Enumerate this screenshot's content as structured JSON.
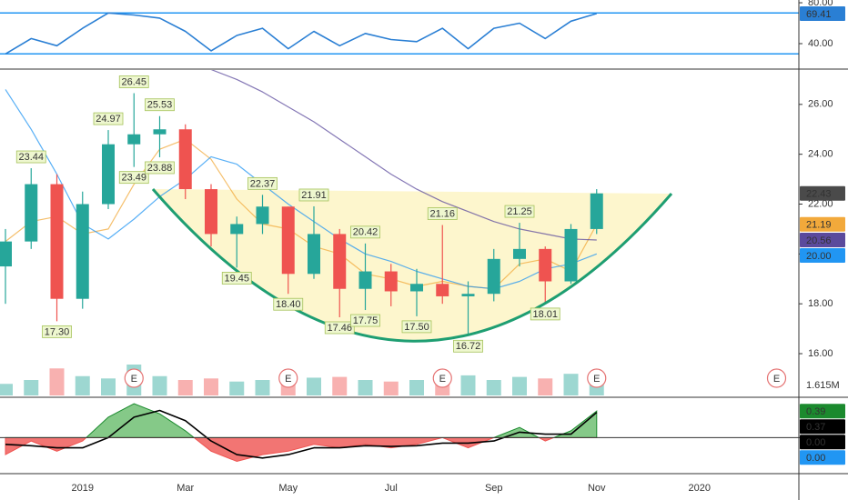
{
  "chart_data": [
    {
      "type": "line",
      "ylim": [
        16,
        82.7
      ],
      "yticks": [
        {
          "value": 80,
          "label": "80.00"
        },
        {
          "value": 40,
          "label": "40.00"
        }
      ],
      "bands": [
        70,
        30
      ],
      "band_color": "#2196f3",
      "series": [
        {
          "color": "#2a7fd4",
          "values": [
            30,
            45,
            38,
            55,
            70,
            68,
            65,
            52,
            33,
            48,
            55,
            35,
            52,
            38,
            50,
            44,
            42,
            55,
            35,
            55,
            60,
            45,
            62,
            69.41,
            null,
            null,
            null,
            null,
            null,
            null,
            null
          ]
        }
      ]
    },
    {
      "type": "candlestick",
      "categories": [
        null,
        null,
        null,
        "2019",
        null,
        null,
        null,
        "Mar",
        null,
        null,
        null,
        "May",
        null,
        null,
        null,
        "Jul",
        null,
        null,
        null,
        "Sep",
        null,
        null,
        null,
        "Nov",
        null,
        null,
        null,
        "2020",
        null,
        null,
        null
      ],
      "open": [
        19.5,
        20.5,
        22.8,
        18.2,
        22.0,
        24.4,
        24.8,
        25.0,
        22.6,
        20.8,
        21.2,
        21.9,
        19.2,
        20.8,
        18.6,
        19.3,
        18.5,
        18.8,
        18.3,
        18.4,
        19.8,
        20.2,
        18.9,
        21.0,
        null,
        null,
        null,
        null,
        null,
        null,
        null
      ],
      "high": [
        21.0,
        23.44,
        23.2,
        22.5,
        24.97,
        26.45,
        25.53,
        25.2,
        22.8,
        21.5,
        22.37,
        21.9,
        21.91,
        21.0,
        20.42,
        19.6,
        19.4,
        21.16,
        18.9,
        20.2,
        21.25,
        20.3,
        21.2,
        22.6,
        null,
        null,
        null,
        null,
        null,
        null,
        null
      ],
      "high_labels": [
        null,
        "23.44",
        null,
        null,
        "24.97",
        "26.45",
        "25.53",
        null,
        null,
        null,
        "22.37",
        null,
        "21.91",
        null,
        "20.42",
        null,
        null,
        "21.16",
        null,
        null,
        "21.25",
        null,
        null,
        null,
        null,
        null,
        null,
        null,
        null,
        null,
        null
      ],
      "low": [
        18.0,
        20.2,
        17.3,
        17.8,
        21.8,
        23.49,
        23.88,
        22.2,
        20.3,
        19.45,
        20.8,
        18.4,
        19.0,
        17.46,
        17.75,
        17.9,
        17.5,
        18.0,
        16.72,
        18.1,
        19.5,
        18.01,
        18.8,
        20.8,
        null,
        null,
        null,
        null,
        null,
        null,
        null
      ],
      "low_labels": [
        null,
        null,
        "17.30",
        null,
        null,
        "23.49",
        "23.88",
        null,
        null,
        "19.45",
        null,
        "18.40",
        null,
        "17.46",
        "17.75",
        null,
        "17.50",
        null,
        "16.72",
        null,
        null,
        "18.01",
        null,
        null,
        null,
        null,
        null,
        null,
        null,
        null,
        null
      ],
      "close": [
        20.5,
        22.8,
        18.2,
        22.0,
        24.4,
        24.8,
        25.0,
        22.6,
        20.8,
        21.2,
        21.9,
        19.2,
        20.8,
        18.6,
        19.3,
        18.5,
        18.8,
        18.3,
        18.4,
        19.8,
        20.2,
        18.9,
        21.0,
        22.43,
        null,
        null,
        null,
        null,
        null,
        null,
        null
      ],
      "up_color": "#26a69a",
      "down_color": "#ef5350",
      "close_color": "#4a4a4a",
      "ylim": [
        14.25,
        27.38
      ],
      "yticks": [
        {
          "value": 16,
          "label": "16.00"
        },
        {
          "value": 18,
          "label": "18.00"
        },
        {
          "value": 20,
          "label": "20.00"
        },
        {
          "value": 22,
          "label": "22.00"
        },
        {
          "value": 24,
          "label": "24.00"
        },
        {
          "value": 26,
          "label": "26.00"
        }
      ],
      "moving_averages": [
        {
          "color": "#f2a93b",
          "values": [
            20.5,
            21.3,
            21.5,
            20.8,
            21.0,
            22.8,
            24.2,
            24.6,
            23.8,
            22.2,
            21.2,
            21.0,
            20.3,
            20.0,
            19.2,
            19.0,
            18.7,
            18.9,
            18.7,
            18.6,
            19.6,
            19.8,
            19.3,
            21.19,
            null,
            null,
            null,
            null,
            null,
            null,
            null
          ]
        },
        {
          "color": "#5b4a9c",
          "values": [
            null,
            null,
            null,
            null,
            null,
            null,
            null,
            null,
            27.4,
            27.0,
            26.5,
            25.9,
            25.3,
            24.6,
            23.9,
            23.2,
            22.6,
            22.1,
            21.7,
            21.3,
            21.0,
            20.8,
            20.6,
            20.56,
            null,
            null,
            null,
            null,
            null,
            null,
            null
          ]
        },
        {
          "color": "#2196f3",
          "values": [
            26.6,
            25.0,
            23.2,
            21.2,
            20.6,
            21.4,
            22.3,
            23.0,
            23.9,
            23.6,
            22.8,
            22.0,
            21.3,
            20.6,
            20.0,
            19.7,
            19.3,
            19.0,
            18.7,
            18.6,
            18.9,
            19.4,
            19.6,
            20.0,
            null,
            null,
            null,
            null,
            null,
            null,
            null
          ],
          "value_labels": [
            null,
            null,
            null,
            null,
            null,
            null,
            null,
            null,
            null,
            null,
            null,
            null,
            null,
            null,
            null,
            null,
            null,
            null,
            null,
            null,
            null,
            null,
            null,
            "20.00",
            null,
            null,
            null,
            null,
            null,
            null,
            null
          ]
        }
      ],
      "volume": {
        "color": "#9e9e9e",
        "values": [
          1.5,
          2.0,
          3.5,
          2.5,
          2.2,
          4.0,
          2.5,
          2.0,
          2.2,
          1.8,
          2.0,
          2.5,
          2.3,
          2.4,
          2.0,
          1.8,
          2.0,
          3.0,
          2.6,
          2.0,
          2.4,
          2.2,
          2.8,
          1.615,
          null,
          null,
          null,
          null,
          null,
          null,
          null
        ],
        "value_labels": [
          null,
          null,
          null,
          null,
          null,
          null,
          null,
          null,
          null,
          null,
          null,
          null,
          null,
          null,
          null,
          null,
          null,
          null,
          null,
          null,
          null,
          null,
          null,
          "1.615M",
          null,
          null,
          null,
          null,
          null,
          null,
          null
        ]
      },
      "earnings": [
        null,
        null,
        null,
        null,
        null,
        "E",
        null,
        null,
        null,
        null,
        null,
        "E",
        null,
        null,
        null,
        null,
        null,
        "E",
        null,
        null,
        null,
        null,
        null,
        "E",
        null,
        null,
        null,
        null,
        null,
        null,
        "E"
      ]
    },
    {
      "type": "area",
      "ylim": [
        -0.53,
        0.58
      ],
      "yticks": [
        {
          "value": 0,
          "label": "0.00"
        }
      ],
      "series": [
        {
          "color": "#1b8a2e",
          "negative_color": "#ef5350",
          "values": [
            -0.25,
            -0.05,
            -0.2,
            -0.05,
            0.3,
            0.5,
            0.35,
            0.1,
            -0.2,
            -0.35,
            -0.25,
            -0.2,
            -0.1,
            -0.15,
            -0.1,
            -0.15,
            -0.1,
            0.0,
            -0.15,
            0.0,
            0.15,
            -0.05,
            0.1,
            0.39,
            null,
            null,
            null,
            null,
            null,
            null,
            null
          ]
        },
        {
          "color": "#000000",
          "values": [
            -0.1,
            -0.12,
            -0.15,
            -0.15,
            0.0,
            0.3,
            0.4,
            0.25,
            -0.05,
            -0.25,
            -0.3,
            -0.25,
            -0.15,
            -0.15,
            -0.12,
            -0.13,
            -0.12,
            -0.08,
            -0.08,
            -0.05,
            0.08,
            0.05,
            0.05,
            0.37,
            null,
            null,
            null,
            null,
            null,
            null,
            null
          ]
        },
        {
          "color": "#2196f3",
          "values": [
            null,
            null,
            null,
            null,
            null,
            null,
            null,
            null,
            null,
            null,
            null,
            null,
            null,
            null,
            null,
            null,
            null,
            null,
            null,
            null,
            null,
            null,
            null,
            0,
            null,
            null,
            null,
            null,
            null,
            null,
            null
          ],
          "value_labels": [
            null,
            null,
            null,
            null,
            null,
            null,
            null,
            null,
            null,
            null,
            null,
            null,
            null,
            null,
            null,
            null,
            null,
            null,
            null,
            null,
            null,
            null,
            null,
            "0.00",
            null,
            null,
            null,
            null,
            null,
            null,
            null
          ]
        }
      ]
    }
  ]
}
